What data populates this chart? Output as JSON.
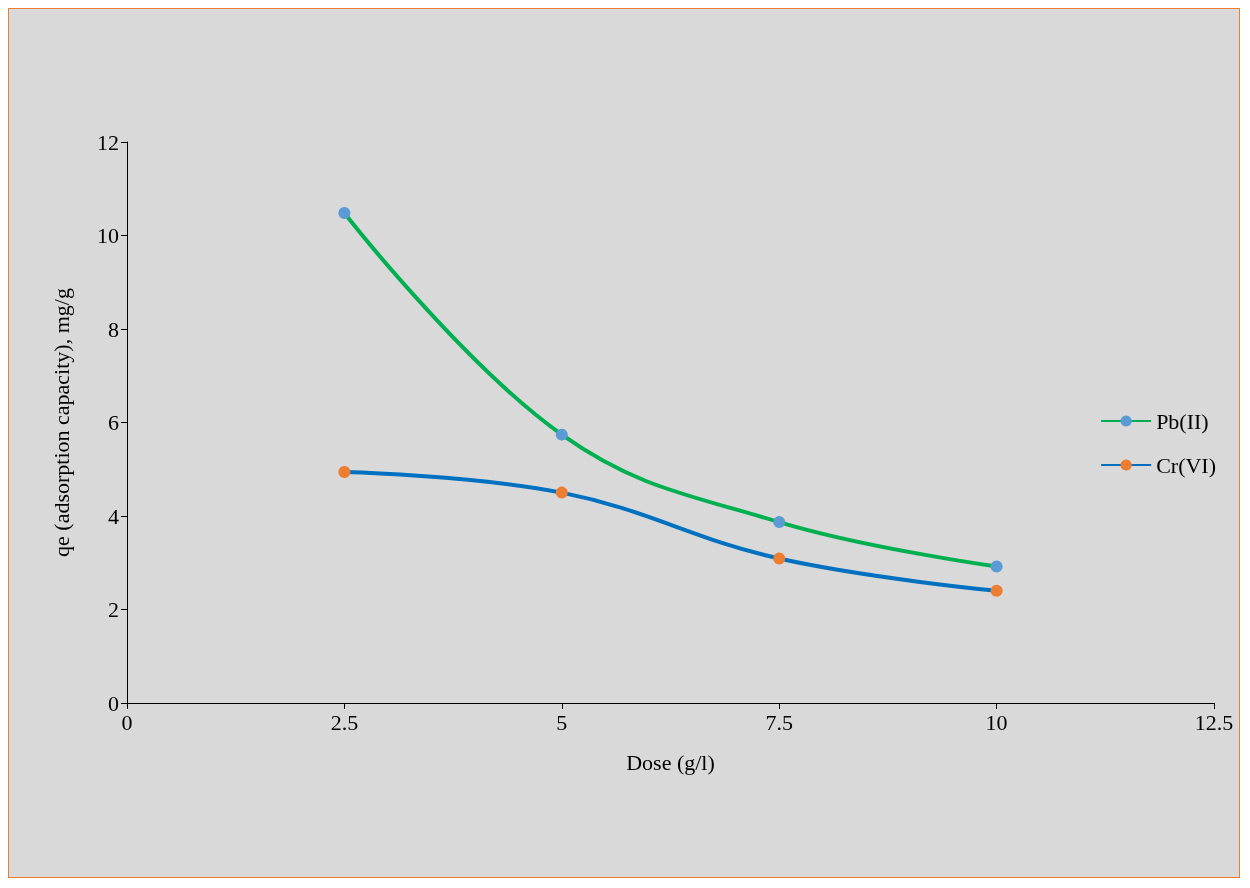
{
  "chart_data": {
    "type": "line",
    "xlabel": "Dose (g/l)",
    "ylabel": "qe (adsorption capacity), mg/g",
    "x": [
      2.5,
      5,
      7.5,
      10
    ],
    "series": [
      {
        "name": "Pb(II)",
        "color": "#00b050",
        "colors": [
          "#5b9bd5",
          "#5b9bd5",
          "#5b9bd5",
          "#5b9bd5"
        ],
        "values": [
          10.48,
          5.74,
          3.87,
          2.92
        ]
      },
      {
        "name": "Cr(VI)",
        "color": "#0070c0",
        "colors": [
          "#ed7d31",
          "#ed7d31",
          "#ed7d31",
          "#ed7d31"
        ],
        "values": [
          4.94,
          4.5,
          3.09,
          2.4
        ]
      }
    ],
    "xlim": [
      0,
      12.5
    ],
    "xticks": [
      0,
      2.5,
      5,
      7.5,
      10,
      12.5
    ],
    "ylim": [
      0,
      12
    ],
    "yticks": [
      0,
      2,
      4,
      6,
      8,
      10,
      12
    ],
    "grid": false,
    "legend": "right",
    "marker": "circle",
    "line_style": "solid"
  }
}
